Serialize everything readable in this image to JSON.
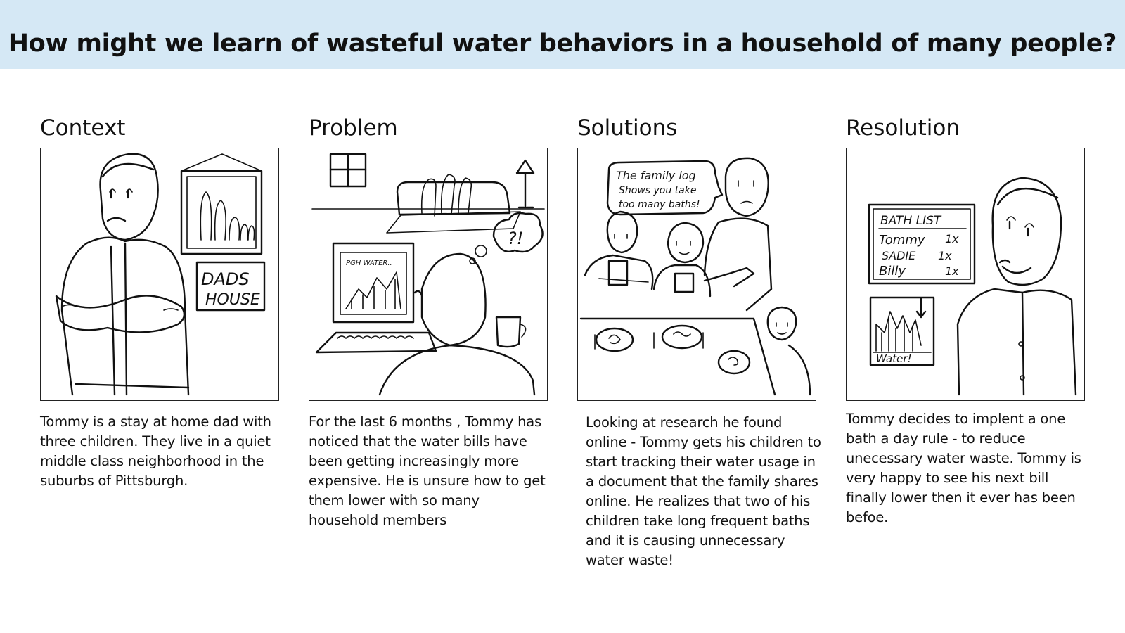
{
  "header": {
    "title": "How might we learn of wasteful water behaviors in a household of many people?"
  },
  "panels": [
    {
      "heading": "Context",
      "text": "Tommy is a stay at home dad with three children. They live in a quiet middle class neighborhood in the suburbs of Pittsburgh.",
      "sketch_text": [
        "DADS",
        "HOUSE"
      ]
    },
    {
      "heading": "Problem",
      "text": "For the last 6 months , Tommy has noticed that the water bills have been getting increasingly more expensive. He is unsure how to get them lower with so many household members",
      "sketch_text": [
        "PGH WATER..",
        "?!"
      ]
    },
    {
      "heading": "Solutions",
      "text": "Looking at research he found online - Tommy  gets his children to start tracking their water usage in a document that the family shares online.  He realizes that two of his children take long frequent baths and it is causing unnecessary water waste!",
      "sketch_text": [
        "The family log",
        "Shows you take",
        "too many baths!"
      ]
    },
    {
      "heading": "Resolution",
      "text": "Tommy decides to implent a one bath a day rule - to reduce unecessary water waste. Tommy is very happy to see his next bill finally lower then it ever has been befoe.",
      "sketch_text": [
        "BATH LIST",
        "Tommy",
        "1x",
        "SADIE",
        "1x",
        "Billy",
        "1x",
        "Water!"
      ]
    }
  ]
}
